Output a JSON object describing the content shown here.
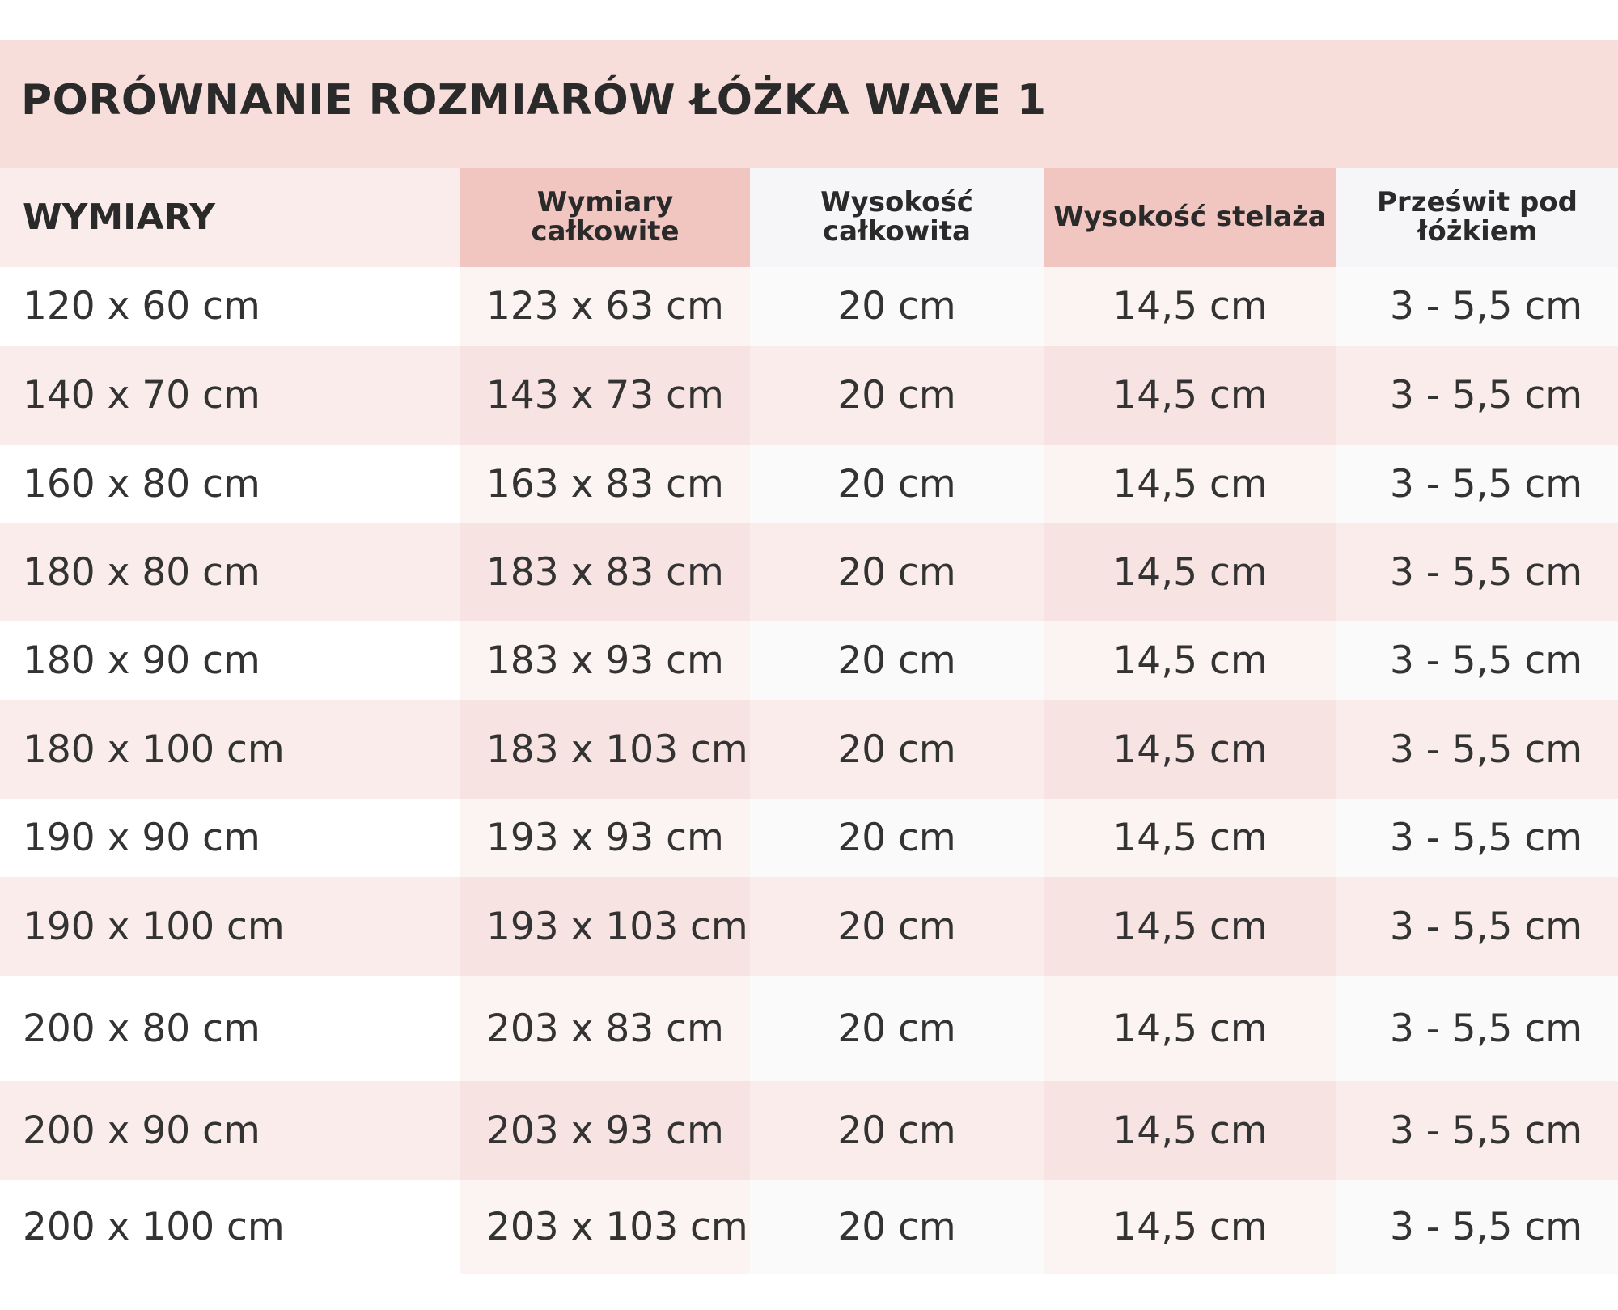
{
  "title": "PORÓWNANIE ROZMIARÓW ŁÓŻKA WAVE 1",
  "table": {
    "headers": [
      "WYMIARY",
      "Wymiary całkowite",
      "Wysokość całkowita",
      "Wysokość stelaża",
      "Prześwit pod łóżkiem"
    ],
    "rows": [
      [
        "120 x 60 cm",
        "123 x 63 cm",
        "20 cm",
        "14,5 cm",
        "3 - 5,5 cm"
      ],
      [
        "140 x 70 cm",
        "143 x 73 cm",
        "20 cm",
        "14,5 cm",
        "3 - 5,5 cm"
      ],
      [
        "160 x 80 cm",
        "163 x 83 cm",
        "20 cm",
        "14,5 cm",
        "3 - 5,5 cm"
      ],
      [
        "180 x 80 cm",
        "183 x 83 cm",
        "20 cm",
        "14,5 cm",
        "3 - 5,5 cm"
      ],
      [
        "180 x 90 cm",
        "183 x 93 cm",
        "20 cm",
        "14,5 cm",
        "3 - 5,5 cm"
      ],
      [
        "180 x 100 cm",
        "183 x 103 cm",
        "20 cm",
        "14,5 cm",
        "3 - 5,5 cm"
      ],
      [
        "190 x 90 cm",
        "193 x 93 cm",
        "20 cm",
        "14,5 cm",
        "3 - 5,5 cm"
      ],
      [
        "190 x 100 cm",
        "193 x 103 cm",
        "20 cm",
        "14,5 cm",
        "3 - 5,5 cm"
      ],
      [
        "200 x 80 cm",
        "203 x 83 cm",
        "20 cm",
        "14,5 cm",
        "3 - 5,5 cm"
      ],
      [
        "200 x 90 cm",
        "203 x 93 cm",
        "20 cm",
        "14,5 cm",
        "3 - 5,5 cm"
      ],
      [
        "200 x 100 cm",
        "203 x 103 cm",
        "20 cm",
        "14,5 cm",
        "3 - 5,5 cm"
      ]
    ]
  },
  "colors": {
    "title_background": "#f8deda",
    "header_accent": "#f1c5c0",
    "header_neutral": "#f6f6f8",
    "row_stripe": "#f9eceb",
    "text": "#2b2b2b"
  }
}
